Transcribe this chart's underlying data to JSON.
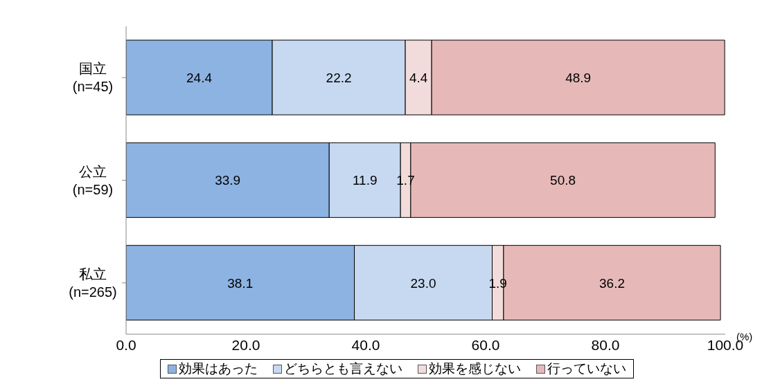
{
  "chart_data": {
    "type": "bar",
    "orientation": "horizontal",
    "stacked": true,
    "categories": [
      "国立\n(n=45)",
      "公立\n(n=59)",
      "私立\n(n=265)"
    ],
    "series": [
      {
        "name": "効果はあった",
        "color": "#8db3e2",
        "values": [
          24.4,
          33.9,
          38.1
        ],
        "value_labels": [
          "24.4",
          "33.9",
          "38.1"
        ]
      },
      {
        "name": "どちらとも言えない",
        "color": "#c6d9f1",
        "values": [
          22.2,
          11.9,
          23.0
        ],
        "value_labels": [
          "22.2",
          "11.9",
          "23.0"
        ]
      },
      {
        "name": "効果を感じない",
        "color": "#f2dcdb",
        "values": [
          4.4,
          1.7,
          1.9
        ],
        "value_labels": [
          "4.4",
          "1.7",
          "1.9"
        ]
      },
      {
        "name": "行っていない",
        "color": "#e6b9b8",
        "values": [
          48.9,
          50.8,
          36.2
        ],
        "value_labels": [
          "48.9",
          "50.8",
          "36.2"
        ]
      }
    ],
    "xlim": [
      0,
      100
    ],
    "xticks": [
      {
        "value": 0,
        "label": "0.0"
      },
      {
        "value": 20,
        "label": "20.0"
      },
      {
        "value": 40,
        "label": "40.0"
      },
      {
        "value": 60,
        "label": "60.0"
      },
      {
        "value": 80,
        "label": "80.0"
      },
      {
        "value": 100,
        "label": "100.0"
      }
    ],
    "annotations": [
      "(%)"
    ],
    "legend": "bottom",
    "grid": false
  }
}
